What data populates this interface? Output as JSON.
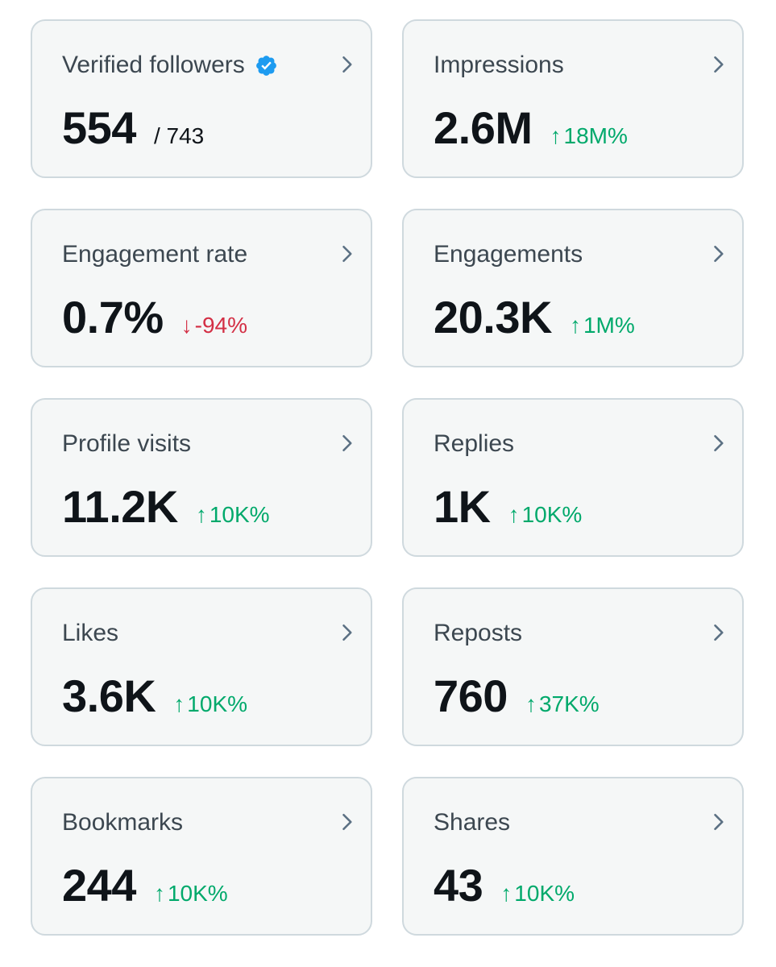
{
  "cards": [
    {
      "key": "verified-followers",
      "title": "Verified followers",
      "value": "554",
      "secondary": "/ 743",
      "verified_icon": "verified-badge-icon",
      "verified_color": "#1d9bf0"
    },
    {
      "key": "impressions",
      "title": "Impressions",
      "value": "2.6M",
      "change": "18M%",
      "direction": "up",
      "arrow": "↑"
    },
    {
      "key": "engagement-rate",
      "title": "Engagement rate",
      "value": "0.7%",
      "change": "-94%",
      "direction": "down",
      "arrow": "↓"
    },
    {
      "key": "engagements",
      "title": "Engagements",
      "value": "20.3K",
      "change": "1M%",
      "direction": "up",
      "arrow": "↑"
    },
    {
      "key": "profile-visits",
      "title": "Profile visits",
      "value": "11.2K",
      "change": "10K%",
      "direction": "up",
      "arrow": "↑"
    },
    {
      "key": "replies",
      "title": "Replies",
      "value": "1K",
      "change": "10K%",
      "direction": "up",
      "arrow": "↑"
    },
    {
      "key": "likes",
      "title": "Likes",
      "value": "3.6K",
      "change": "10K%",
      "direction": "up",
      "arrow": "↑"
    },
    {
      "key": "reposts",
      "title": "Reposts",
      "value": "760",
      "change": "37K%",
      "direction": "up",
      "arrow": "↑"
    },
    {
      "key": "bookmarks",
      "title": "Bookmarks",
      "value": "244",
      "change": "10K%",
      "direction": "up",
      "arrow": "↑"
    },
    {
      "key": "shares",
      "title": "Shares",
      "value": "43",
      "change": "10K%",
      "direction": "up",
      "arrow": "↑"
    }
  ],
  "colors": {
    "up": "#00a96b",
    "down": "#d32f45",
    "card_bg": "#f5f7f7",
    "card_border": "#cfd9de",
    "chevron": "#5b7083"
  },
  "icons": {
    "chevron": "chevron-right-icon"
  }
}
